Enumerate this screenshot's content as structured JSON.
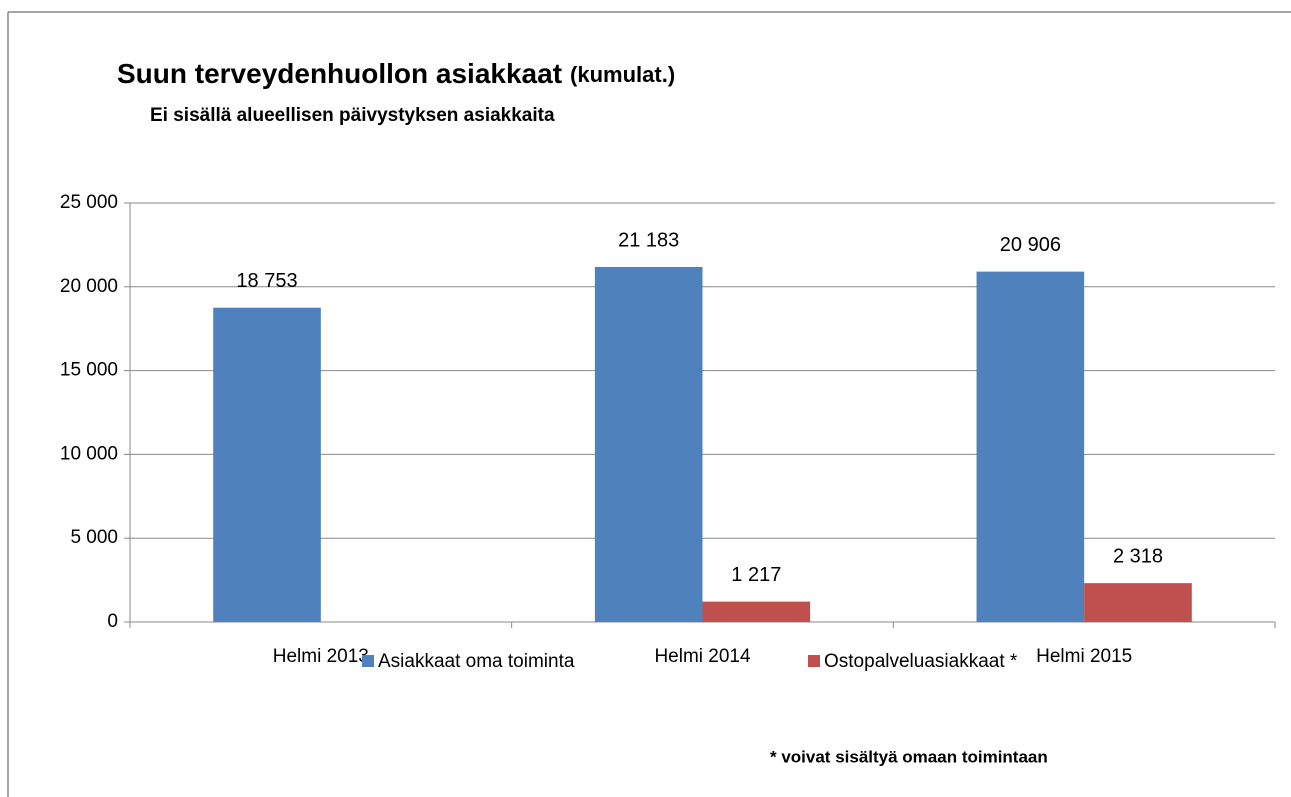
{
  "chart_data": {
    "type": "bar",
    "title": "Suun terveydenhuollon asiakkaat",
    "title_note": "(kumulat.)",
    "subtitle": "Ei sisällä alueellisen päivystyksen asiakkaita",
    "annotation": "* voivat  sisältyä omaan toimintaan",
    "categories": [
      "Helmi 2013",
      "Helmi 2014",
      "Helmi 2015"
    ],
    "series": [
      {
        "name": "Asiakkaat oma toiminta",
        "color": "#4f81bd",
        "values": [
          18753,
          21183,
          20906
        ],
        "value_labels": [
          "18 753",
          "21 183",
          "20 906"
        ]
      },
      {
        "name": "Ostopalveluasiakkaat *",
        "color": "#c0504d",
        "values": [
          null,
          1217,
          2318
        ],
        "value_labels": [
          null,
          "1 217",
          "2 318"
        ]
      }
    ],
    "ylim": [
      0,
      25000
    ],
    "yticks": [
      {
        "value": 0,
        "label": "0"
      },
      {
        "value": 5000,
        "label": "5 000"
      },
      {
        "value": 10000,
        "label": "10 000"
      },
      {
        "value": 15000,
        "label": "15 000"
      },
      {
        "value": 20000,
        "label": "20 000"
      },
      {
        "value": 25000,
        "label": "25 000"
      }
    ],
    "grid": true,
    "legend": "bottom"
  }
}
